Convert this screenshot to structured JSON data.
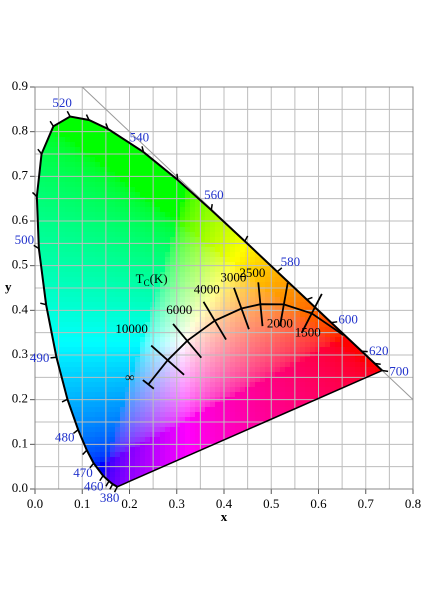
{
  "chart_data": {
    "type": "chromaticity",
    "xlabel": "x",
    "ylabel": "y",
    "xlim": [
      0,
      0.8
    ],
    "ylim": [
      0,
      0.9
    ],
    "xticks": [
      {
        "value": 0,
        "label": "0.0"
      },
      0.1,
      0.2,
      0.3,
      0.4,
      0.5,
      0.6,
      0.7,
      0.8
    ],
    "yticks": [
      {
        "value": 0,
        "label": "0.0"
      },
      0.1,
      0.2,
      0.3,
      0.4,
      0.5,
      0.6,
      0.7,
      0.8,
      0.9
    ],
    "minor_xticks": [
      0.05,
      0.15,
      0.25,
      0.35,
      0.45,
      0.55,
      0.65,
      0.75
    ],
    "minor_yticks": [
      0.05,
      0.15,
      0.25,
      0.35,
      0.45,
      0.55,
      0.65,
      0.75,
      0.85
    ],
    "grid": true,
    "spectral_locus": {
      "color": "#000000",
      "label_color": "#2233cc",
      "wavelengths": [
        "380",
        null,
        null,
        "460",
        "470",
        null,
        "480",
        null,
        "490",
        null,
        "500",
        null,
        null,
        null,
        "520",
        null,
        null,
        "540",
        null,
        "560",
        null,
        "580",
        null,
        "600",
        "620",
        null,
        "700"
      ],
      "x": [
        0.1741,
        0.1644,
        0.1566,
        0.144,
        0.1241,
        0.1096,
        0.0913,
        0.0687,
        0.0454,
        0.0235,
        0.0082,
        0.0039,
        0.0139,
        0.0389,
        0.0743,
        0.1142,
        0.1547,
        0.2296,
        0.3016,
        0.3731,
        0.4441,
        0.5125,
        0.5752,
        0.627,
        0.6915,
        0.719,
        0.7347
      ],
      "y": [
        0.005,
        0.0109,
        0.0177,
        0.0297,
        0.0578,
        0.0868,
        0.1327,
        0.2007,
        0.295,
        0.4127,
        0.5384,
        0.6548,
        0.7502,
        0.812,
        0.8338,
        0.8262,
        0.8059,
        0.7543,
        0.6923,
        0.6245,
        0.5547,
        0.4866,
        0.4242,
        0.3725,
        0.3083,
        0.2809,
        0.2653
      ]
    },
    "planckian_locus": {
      "color": "#000000",
      "label": {
        "main": "T",
        "sub": "C",
        "unit": "(K)"
      },
      "temperatures": [
        "∞",
        "10000",
        "6000",
        "4000",
        "3000",
        "2500",
        "2000",
        "1500",
        null
      ],
      "x": [
        0.2399,
        0.2807,
        0.3221,
        0.3805,
        0.4369,
        0.477,
        0.5267,
        0.5857,
        0.6528
      ],
      "y": [
        0.2342,
        0.2884,
        0.3318,
        0.3768,
        0.4041,
        0.4137,
        0.4133,
        0.3931,
        0.3444
      ]
    }
  }
}
